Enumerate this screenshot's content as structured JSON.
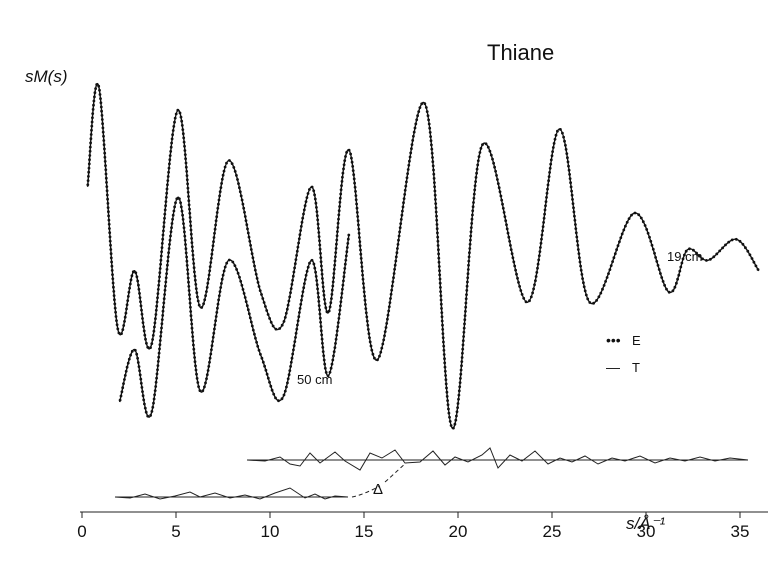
{
  "chart_data": {
    "type": "line",
    "title": "Thiane",
    "ylabel": "sM(s)",
    "xlabel": "s/Å⁻¹",
    "xlim": [
      0,
      37
    ],
    "grid": false,
    "legend": {
      "placement": "right",
      "items": [
        {
          "marker": "•••",
          "label": "E"
        },
        {
          "marker": "—",
          "label": "T"
        }
      ]
    },
    "annotations": [
      "19 cm",
      "50 cm",
      "Δ"
    ],
    "x_ticks": [
      0,
      5,
      10,
      15,
      20,
      25,
      30,
      35
    ],
    "x_tick_labels": [
      "0",
      "5",
      "10",
      "15",
      "20",
      "25",
      "30",
      "35"
    ],
    "series": [
      {
        "name": "19 cm",
        "x": [
          0.3,
          0.9,
          1.9,
          2.8,
          3.7,
          5.1,
          6.3,
          7.8,
          9.5,
          10.7,
          12.2,
          13.1,
          14.2,
          15.7,
          18.2,
          19.7,
          21.3,
          23.7,
          25.4,
          27.0,
          29.4,
          31.2,
          32.2,
          33.3,
          34.8,
          36.0
        ],
        "y": [
          0.05,
          1.0,
          -1.3,
          -0.75,
          -1.45,
          0.78,
          -1.1,
          0.3,
          -0.95,
          -1.25,
          0.05,
          -1.15,
          0.4,
          -1.6,
          0.85,
          -2.25,
          0.45,
          -1.05,
          0.6,
          -1.05,
          -0.2,
          -0.95,
          -0.55,
          -0.65,
          -0.45,
          -0.75
        ]
      },
      {
        "name": "50 cm",
        "x": [
          2.0,
          2.8,
          3.7,
          5.1,
          6.3,
          7.8,
          9.5,
          10.7,
          12.2,
          13.1,
          14.2
        ],
        "y": [
          -2.0,
          -1.5,
          -2.1,
          -0.05,
          -1.9,
          -0.65,
          -1.55,
          -1.95,
          -0.65,
          -1.75,
          -0.4
        ]
      }
    ]
  }
}
